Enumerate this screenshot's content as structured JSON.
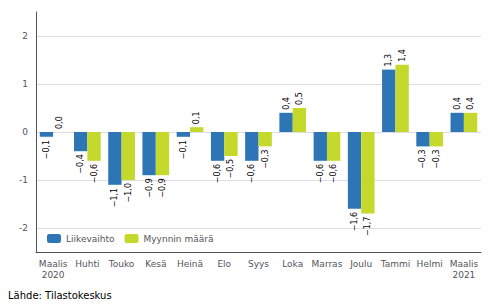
{
  "chart_data": {
    "type": "bar",
    "categories": [
      "Maalis\n2020",
      "Huhti",
      "Touko",
      "Kesä",
      "Heinä",
      "Elo",
      "Syys",
      "Loka",
      "Marras",
      "Joulu",
      "Tammi",
      "Helmi",
      "Maalis\n2021"
    ],
    "series": [
      {
        "name": "Liikevaihto",
        "color": "#2e75b6",
        "values": [
          -0.1,
          -0.4,
          -1.1,
          -0.9,
          -0.1,
          -0.6,
          -0.6,
          0.4,
          -0.6,
          -1.6,
          1.3,
          -0.3,
          0.4
        ],
        "value_labels": [
          "−0,1",
          "−0,4",
          "−1,1",
          "−0,9",
          "−0,1",
          "−0,6",
          "−0,6",
          "0,4",
          "−0,6",
          "−1,6",
          "1,3",
          "−0,3",
          "0,4"
        ]
      },
      {
        "name": "Myynnin määrä",
        "color": "#c5d92d",
        "values": [
          0.0,
          -0.6,
          -1.0,
          -0.9,
          0.1,
          -0.5,
          -0.3,
          0.5,
          -0.6,
          -1.7,
          1.4,
          -0.3,
          0.4
        ],
        "value_labels": [
          "0,0",
          "−0,6",
          "−1,0",
          "−0,9",
          "0,1",
          "−0,5",
          "−0,3",
          "0,5",
          "−0,6",
          "−1,7",
          "1,4",
          "−0,3",
          "0,4"
        ]
      }
    ],
    "ylim": [
      -2.5,
      2.5
    ],
    "yticks": [
      -2,
      -1,
      0,
      1,
      2
    ],
    "grid": true,
    "legend": "lower left",
    "data_labels": true,
    "annotations": [
      "Lähde: Tilastokeskus"
    ]
  }
}
